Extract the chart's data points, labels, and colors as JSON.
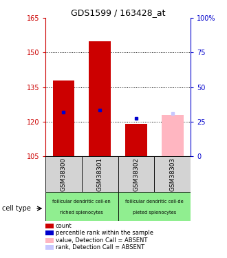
{
  "title": "GDS1599 / 163428_at",
  "samples": [
    "GSM38300",
    "GSM38301",
    "GSM38302",
    "GSM38303"
  ],
  "ylim_left": [
    105,
    165
  ],
  "ylim_right": [
    0,
    100
  ],
  "yticks_left": [
    105,
    120,
    135,
    150,
    165
  ],
  "yticks_right": [
    0,
    25,
    50,
    75,
    100
  ],
  "red_bar_tops": [
    138,
    155,
    119,
    105
  ],
  "blue_sq_values": [
    124,
    125,
    121.5,
    null
  ],
  "absent_bar_top": [
    null,
    null,
    null,
    123
  ],
  "absent_rank_val": [
    null,
    null,
    null,
    123.5
  ],
  "group1_color": "#90EE90",
  "group2_color": "#90EE90",
  "legend_items": [
    {
      "color": "#cc0000",
      "label": "count"
    },
    {
      "color": "#0000cc",
      "label": "percentile rank within the sample"
    },
    {
      "color": "#ffb6c1",
      "label": "value, Detection Call = ABSENT"
    },
    {
      "color": "#c8c8ff",
      "label": "rank, Detection Call = ABSENT"
    }
  ],
  "bar_width": 0.6,
  "red_color": "#cc0000",
  "blue_color": "#0000cc",
  "absent_bar_color": "#ffb6c1",
  "absent_rank_color": "#c8c8ff",
  "tick_color_left": "#cc0000",
  "tick_color_right": "#0000cc",
  "xticklabel_bg": "#d3d3d3",
  "cell_type_label": "cell type",
  "group1_line1": "follicular dendritic cell-en",
  "group1_line2": "riched splenocytes",
  "group2_line1": "follicular dendritic cell-de",
  "group2_line2": "pleted splenocytes"
}
